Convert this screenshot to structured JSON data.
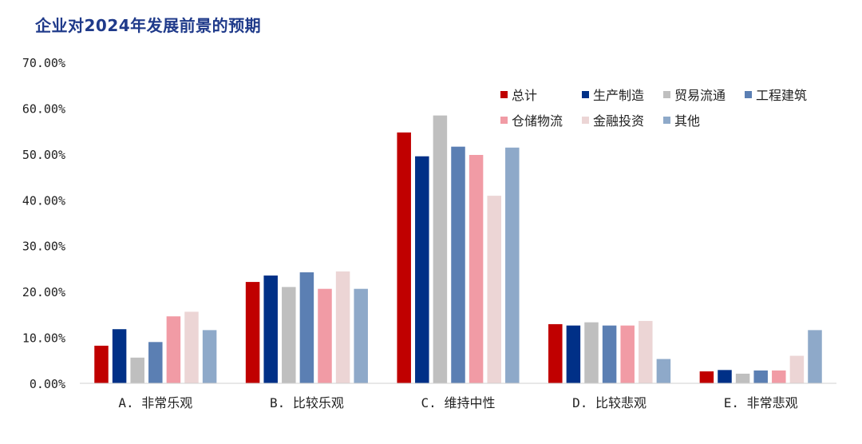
{
  "chart_data": {
    "type": "bar",
    "title": "企业对2024年发展前景的预期",
    "categories": [
      "A. 非常乐观",
      "B. 比较乐观",
      "C. 维持中性",
      "D. 比较悲观",
      "E. 非常悲观"
    ],
    "ylim": [
      0,
      70
    ],
    "yticks": [
      "0.00%",
      "10.00%",
      "20.00%",
      "30.00%",
      "40.00%",
      "50.00%",
      "60.00%",
      "70.00%"
    ],
    "grid": false,
    "legend_position": "top-right",
    "series": [
      {
        "name": "总计",
        "color": "#c00000",
        "values": [
          8.2,
          22.1,
          54.7,
          12.9,
          2.6
        ]
      },
      {
        "name": "生产制造",
        "color": "#003087",
        "values": [
          11.8,
          23.5,
          49.5,
          12.6,
          2.9
        ]
      },
      {
        "name": "贸易流通",
        "color": "#bfbfbf",
        "values": [
          5.6,
          21.0,
          58.4,
          13.3,
          2.1
        ]
      },
      {
        "name": "工程建筑",
        "color": "#5b7fb3",
        "values": [
          9.0,
          24.2,
          51.6,
          12.6,
          2.8
        ]
      },
      {
        "name": "仓储物流",
        "color": "#f19ba5",
        "values": [
          14.6,
          20.6,
          49.8,
          12.6,
          2.8
        ]
      },
      {
        "name": "金融投资",
        "color": "#ecd5d5",
        "values": [
          15.6,
          24.4,
          40.9,
          13.6,
          6.0
        ]
      },
      {
        "name": "其他",
        "color": "#8ea9c9",
        "values": [
          11.6,
          20.6,
          51.4,
          5.3,
          11.6
        ]
      }
    ]
  }
}
